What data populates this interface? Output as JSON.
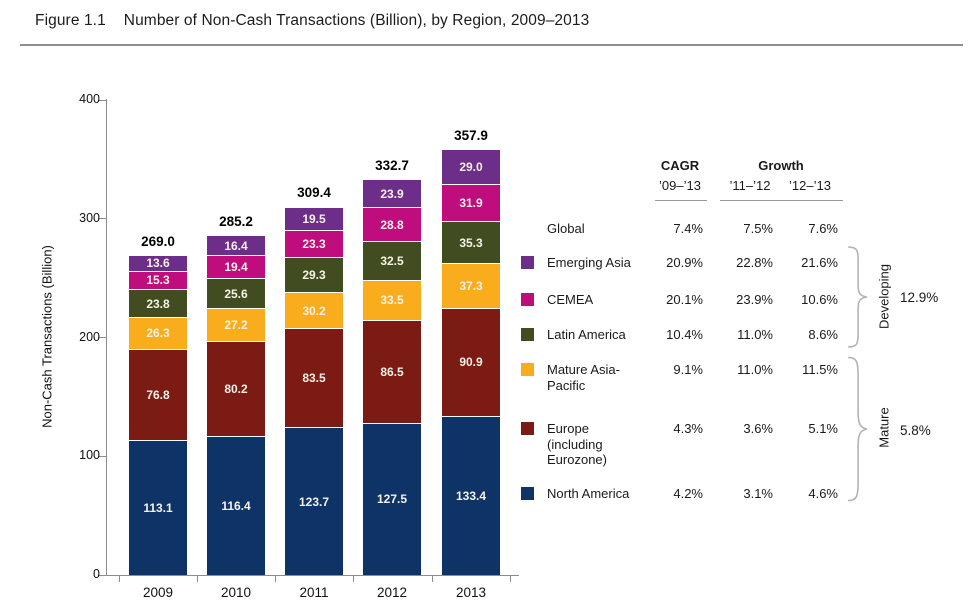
{
  "header": {
    "figure_label": "Figure 1.1",
    "title": "Number of Non-Cash Transactions (Billion), by Region, 2009–2013"
  },
  "chart_data": {
    "type": "bar",
    "stacked": true,
    "title": "Number of Non-Cash Transactions (Billion), by Region, 2009–2013",
    "xlabel": "",
    "ylabel": "Non-Cash Transactions (Billion)",
    "ylim": [
      0,
      400
    ],
    "yticks": [
      0,
      100,
      200,
      300,
      400
    ],
    "grid": false,
    "categories": [
      "2009",
      "2010",
      "2011",
      "2012",
      "2013"
    ],
    "totals": [
      269.0,
      285.2,
      309.4,
      332.7,
      357.9
    ],
    "series": [
      {
        "name": "North America",
        "color": "#0E3467",
        "values": [
          113.1,
          116.4,
          123.7,
          127.5,
          133.4
        ]
      },
      {
        "name": "Europe (including Eurozone)",
        "color": "#7B1B14",
        "values": [
          76.8,
          80.2,
          83.5,
          86.5,
          90.9
        ]
      },
      {
        "name": "Mature Asia-Pacific",
        "color": "#F9AD1D",
        "values": [
          26.3,
          27.2,
          30.2,
          33.5,
          37.3
        ]
      },
      {
        "name": "Latin America",
        "color": "#414D20",
        "values": [
          23.8,
          25.6,
          29.3,
          32.5,
          35.3
        ]
      },
      {
        "name": "CEMEA",
        "color": "#BF0D7D",
        "values": [
          15.3,
          19.4,
          23.3,
          28.8,
          31.9
        ]
      },
      {
        "name": "Emerging Asia",
        "color": "#6C2E88",
        "values": [
          13.6,
          16.4,
          19.5,
          23.9,
          29.0
        ]
      }
    ]
  },
  "table": {
    "headers": {
      "cagr": "CAGR",
      "growth": "Growth",
      "cagr_period": "’09–’13",
      "growth_period_1": "’11–’12",
      "growth_period_2": "’12–’13"
    },
    "rows": [
      {
        "label": "Global",
        "swatch": false,
        "cagr": "7.4%",
        "growth_11_12": "7.5%",
        "growth_12_13": "7.6%"
      },
      {
        "label": "Emerging Asia",
        "swatch": true,
        "cagr": "20.9%",
        "growth_11_12": "22.8%",
        "growth_12_13": "21.6%"
      },
      {
        "label": "CEMEA",
        "swatch": true,
        "cagr": "20.1%",
        "growth_11_12": "23.9%",
        "growth_12_13": "10.6%"
      },
      {
        "label": "Latin America",
        "swatch": true,
        "cagr": "10.4%",
        "growth_11_12": "11.0%",
        "growth_12_13": "8.6%"
      },
      {
        "label": "Mature Asia-Pacific",
        "swatch": true,
        "cagr": "9.1%",
        "growth_11_12": "11.0%",
        "growth_12_13": "11.5%"
      },
      {
        "label": "Europe (including Eurozone)",
        "swatch": true,
        "cagr": "4.3%",
        "growth_11_12": "3.6%",
        "growth_12_13": "5.1%"
      },
      {
        "label": "North America",
        "swatch": true,
        "cagr": "4.2%",
        "growth_11_12": "3.1%",
        "growth_12_13": "4.6%"
      }
    ],
    "groups": [
      {
        "label": "Developing",
        "value": "12.9%"
      },
      {
        "label": "Mature",
        "value": "5.8%"
      }
    ]
  }
}
